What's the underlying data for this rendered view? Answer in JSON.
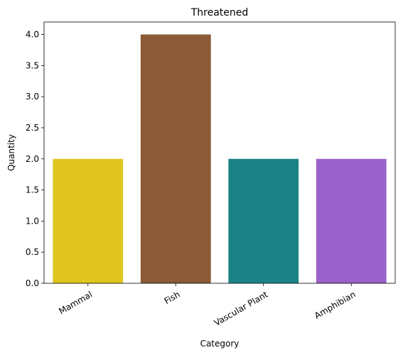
{
  "chart_data": {
    "type": "bar",
    "title": "Threatened",
    "xlabel": "Category",
    "ylabel": "Quantity",
    "categories": [
      "Mammal",
      "Fish",
      "Vascular Plant",
      "Amphibian"
    ],
    "values": [
      2.0,
      4.0,
      2.0,
      2.0
    ],
    "colors": [
      "#e0c51f",
      "#8b5a36",
      "#1b8385",
      "#9a62cb"
    ],
    "ylim": [
      0,
      4.2
    ],
    "yticks": [
      "0.0",
      "0.5",
      "1.0",
      "1.5",
      "2.0",
      "2.5",
      "3.0",
      "3.5",
      "4.0"
    ],
    "ytick_values": [
      0,
      0.5,
      1.0,
      1.5,
      2.0,
      2.5,
      3.0,
      3.5,
      4.0
    ],
    "grid": false,
    "legend": "none"
  }
}
